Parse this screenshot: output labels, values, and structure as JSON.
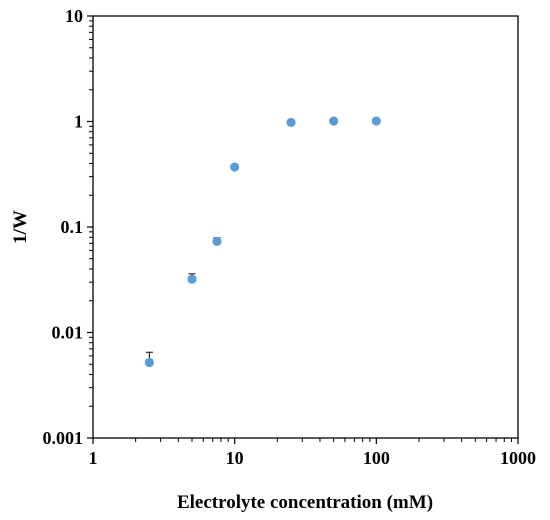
{
  "chart_data": {
    "type": "scatter",
    "title": "",
    "xlabel": "Electrolyte concentration (mM)",
    "ylabel": "1/W",
    "xscale": "log",
    "yscale": "log",
    "xlim": [
      1,
      1000
    ],
    "ylim": [
      0.001,
      10
    ],
    "x_ticks": [
      "1",
      "10",
      "100",
      "1000"
    ],
    "y_ticks": [
      "0.001",
      "0.01",
      "0.1",
      "1",
      "10"
    ],
    "grid": false,
    "legend": "none",
    "marker_color": "#5B9BD5",
    "series": [
      {
        "x": [
          2.5,
          5,
          7.5,
          10,
          25,
          50,
          100
        ],
        "y": [
          0.0052,
          0.032,
          0.073,
          0.37,
          0.98,
          1.01,
          1.01
        ],
        "error_upper": [
          0.0065,
          0.036,
          0.079,
          null,
          null,
          null,
          null
        ]
      }
    ]
  }
}
